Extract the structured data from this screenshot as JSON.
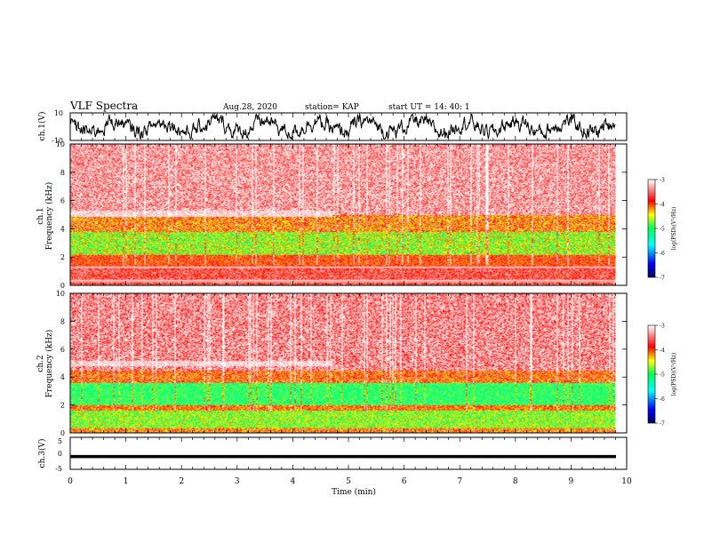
{
  "header": {
    "title": "VLF Spectra",
    "date": "Aug.28, 2020",
    "station": "station= KAP",
    "start": "start  UT =   14: 40: 1"
  },
  "chart_data": [
    {
      "type": "line",
      "panel": "ch1-waveform",
      "ylabel": "ch.1(V)",
      "ylim": [
        -10,
        10
      ],
      "yticks": [
        "10",
        "-10"
      ],
      "xlim": [
        0,
        10
      ],
      "approx_mean": 0,
      "approx_amplitude": 5
    },
    {
      "type": "heatmap",
      "panel": "ch1-spectrogram",
      "ylabel_top": "ch.1",
      "ylabel": "Frequency (kHz)",
      "ylim": [
        0,
        10
      ],
      "yticks": [
        "0",
        "2",
        "4",
        "6",
        "8",
        "10"
      ],
      "xlim": [
        0,
        10
      ],
      "data_end_min": 9.8,
      "colorbar": {
        "label": "log(PSD)(V²/Hz)",
        "range": [
          -7,
          -3
        ],
        "ticks": [
          "-3",
          "-4",
          "-5",
          "-6",
          "-7"
        ],
        "colors": [
          "#000080",
          "#0000ff",
          "#00ffff",
          "#00ff66",
          "#ffff00",
          "#ff0000",
          "#ffffff"
        ]
      }
    },
    {
      "type": "heatmap",
      "panel": "ch2-spectrogram",
      "ylabel_top": "ch.2",
      "ylabel": "Frequency (kHz)",
      "ylim": [
        0,
        10
      ],
      "yticks": [
        "0",
        "2",
        "4",
        "6",
        "8",
        "10"
      ],
      "xlim": [
        0,
        10
      ],
      "data_end_min": 9.8,
      "colorbar": {
        "label": "log(PSD)(V²/Hz)",
        "range": [
          -7,
          -3
        ],
        "ticks": [
          "-3",
          "-4",
          "-5",
          "-6",
          "-7"
        ],
        "colors": [
          "#000080",
          "#0000ff",
          "#00ffff",
          "#00ff66",
          "#ffff00",
          "#ff0000",
          "#ffffff"
        ]
      }
    },
    {
      "type": "line",
      "panel": "ch3-waveform",
      "ylabel": "ch.3(V)",
      "ylim": [
        -5,
        5
      ],
      "yticks": [
        "5",
        "0",
        "-5"
      ],
      "xlim": [
        0,
        10
      ],
      "approx_level": -1,
      "xlabel": "Time (min)",
      "xticks": [
        "0",
        "1",
        "2",
        "3",
        "4",
        "5",
        "6",
        "7",
        "8",
        "9",
        "10"
      ]
    }
  ]
}
